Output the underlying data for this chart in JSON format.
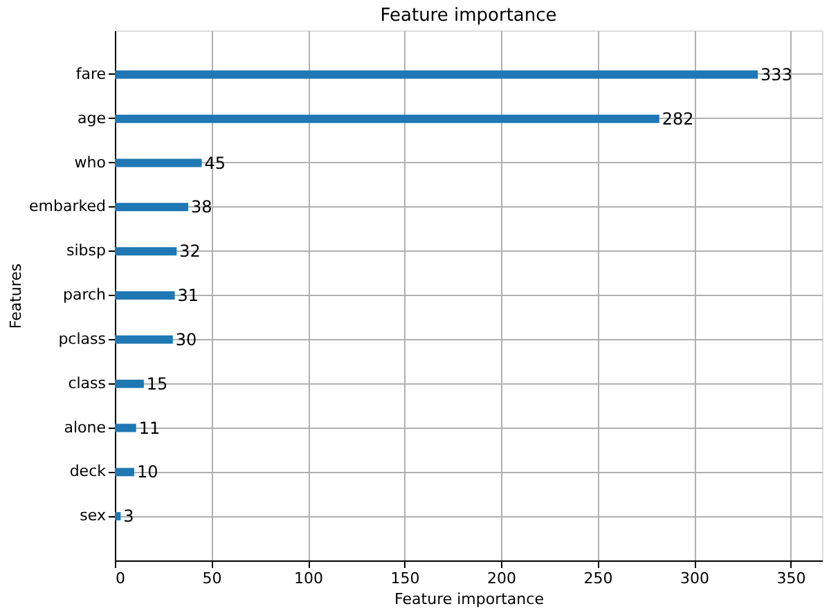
{
  "chart_data": {
    "type": "bar",
    "orientation": "horizontal",
    "title": "Feature importance",
    "xlabel": "Feature importance",
    "ylabel": "Features",
    "categories": [
      "fare",
      "age",
      "who",
      "embarked",
      "sibsp",
      "parch",
      "pclass",
      "class",
      "alone",
      "deck",
      "sex"
    ],
    "values": [
      333,
      282,
      45,
      38,
      32,
      31,
      30,
      15,
      11,
      10,
      3
    ],
    "color": "#1f77b4",
    "xlim": [
      0,
      366.3
    ],
    "xticks": [
      0,
      50,
      100,
      150,
      200,
      250,
      300,
      350
    ],
    "grid": true,
    "data_labels": true
  }
}
